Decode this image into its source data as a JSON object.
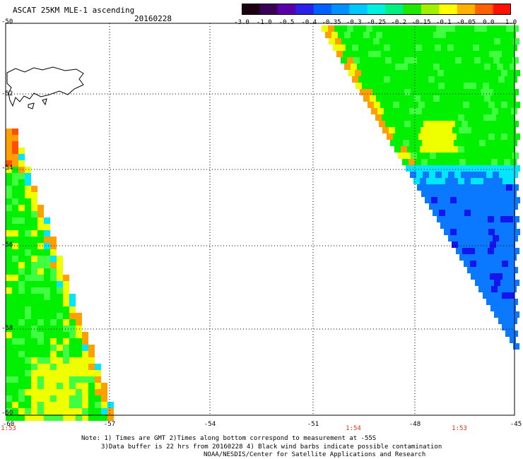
{
  "header": {
    "title": "ASCAT 25KM MLE-1 ascending",
    "date": "20160228"
  },
  "colorbar": {
    "ticks": [
      "-3.0",
      "-1.0",
      "-0.5",
      "-0.4",
      "-0.35",
      "-0.3",
      "-0.25",
      "-0.2",
      "-0.15",
      "-0.1",
      "-0.05",
      "0.0",
      "1.0"
    ],
    "colors": [
      "#1a0010",
      "#3a0058",
      "#5a00a8",
      "#2a20e8",
      "#0060ff",
      "#0090ff",
      "#00c8ff",
      "#00f0e0",
      "#00f080",
      "#20e800",
      "#a0f000",
      "#ffff00",
      "#ffb000",
      "#ff6000",
      "#ff1000"
    ]
  },
  "axes": {
    "y_labels": [
      "-50",
      "-52",
      "-54",
      "-56",
      "-58",
      "-60"
    ],
    "x_labels": [
      "-60",
      "-57",
      "-54",
      "-51",
      "-48",
      "-45"
    ],
    "time_labels": [
      "1:53",
      "1:54",
      "1:53"
    ]
  },
  "notes": {
    "line1": "Note: 1) Times are GMT 2)Times along bottom correspond to measurement at -55S",
    "line2": "3)Data buffer is 22 hrs from 20160228 4) Black wind barbs indicate possible contamination",
    "line3": "NOAA/NESDIS/Center for Satellite Applications and Research"
  },
  "map_colors": {
    "blue": "#0a78ff",
    "darkblue": "#1414f0",
    "cyan": "#00e6ff",
    "green": "#00f000",
    "lightgreen": "#40ff40",
    "yellow": "#f0ff00",
    "orange": "#ffa000",
    "red": "#ff5000"
  }
}
